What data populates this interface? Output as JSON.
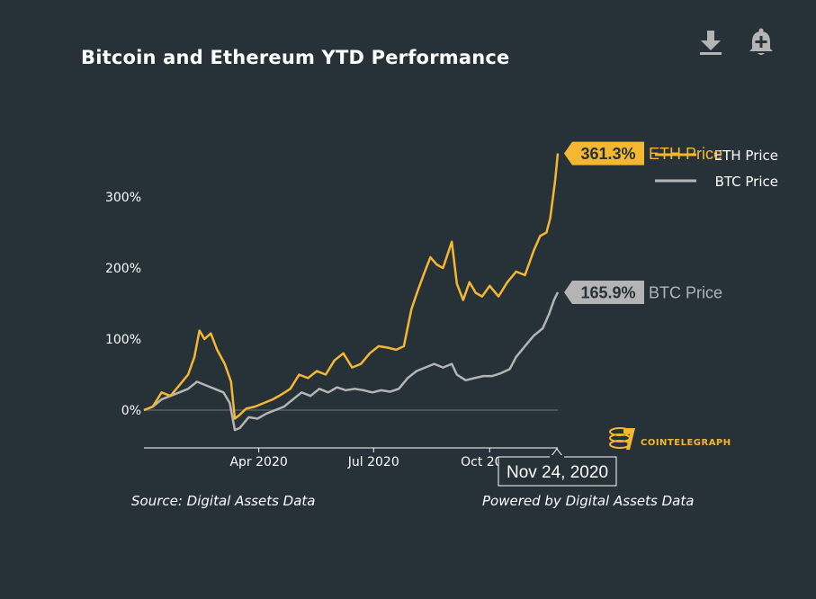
{
  "header": {
    "title": "Bitcoin and Ethereum YTD Performance",
    "download_icon": "download-icon",
    "alert_icon": "add-alert-bell-icon"
  },
  "footer": {
    "source": "Source: Digital Assets Data",
    "powered_by": "Powered by Digital Assets Data"
  },
  "logo": {
    "text": "COINTELEGRAPH",
    "icon": "cointelegraph-logo-icon"
  },
  "colors": {
    "background": "#263238",
    "eth": "#f5b731",
    "btc": "#b4b4b4",
    "axis": "#ffffff"
  },
  "tooltip": {
    "date": "Nov 24, 2020"
  },
  "chart_data": {
    "type": "line",
    "title": "Bitcoin and Ethereum YTD Performance",
    "xlabel": "",
    "ylabel": "",
    "y_unit": "%",
    "ylim": [
      -50,
      370
    ],
    "y_ticks": [
      {
        "value": 0,
        "label": "0%"
      },
      {
        "value": 100,
        "label": "100%"
      },
      {
        "value": 200,
        "label": "200%"
      },
      {
        "value": 300,
        "label": "300%"
      }
    ],
    "xlim": [
      "2020-01-01",
      "2020-11-24"
    ],
    "x_ticks": [
      {
        "value": "2020-04-01",
        "label": "Apr 2020"
      },
      {
        "value": "2020-07-01",
        "label": "Jul 2020"
      },
      {
        "value": "2020-10-01",
        "label": "Oct 2020"
      }
    ],
    "grid": false,
    "legend_position": "top-right",
    "series": [
      {
        "name": "ETH Price",
        "color": "#f5b731",
        "end_label": "361.3%",
        "points": [
          [
            "2020-01-01",
            0
          ],
          [
            "2020-01-08",
            5
          ],
          [
            "2020-01-15",
            25
          ],
          [
            "2020-01-22",
            20
          ],
          [
            "2020-01-29",
            35
          ],
          [
            "2020-02-05",
            50
          ],
          [
            "2020-02-10",
            75
          ],
          [
            "2020-02-14",
            112
          ],
          [
            "2020-02-18",
            100
          ],
          [
            "2020-02-23",
            108
          ],
          [
            "2020-02-28",
            85
          ],
          [
            "2020-03-05",
            65
          ],
          [
            "2020-03-10",
            40
          ],
          [
            "2020-03-13",
            -12
          ],
          [
            "2020-03-16",
            -8
          ],
          [
            "2020-03-22",
            2
          ],
          [
            "2020-03-29",
            5
          ],
          [
            "2020-04-05",
            10
          ],
          [
            "2020-04-12",
            15
          ],
          [
            "2020-04-19",
            22
          ],
          [
            "2020-04-26",
            30
          ],
          [
            "2020-05-03",
            50
          ],
          [
            "2020-05-10",
            45
          ],
          [
            "2020-05-17",
            55
          ],
          [
            "2020-05-24",
            50
          ],
          [
            "2020-05-31",
            70
          ],
          [
            "2020-06-07",
            80
          ],
          [
            "2020-06-14",
            60
          ],
          [
            "2020-06-21",
            65
          ],
          [
            "2020-06-28",
            80
          ],
          [
            "2020-07-05",
            90
          ],
          [
            "2020-07-12",
            88
          ],
          [
            "2020-07-19",
            85
          ],
          [
            "2020-07-25",
            90
          ],
          [
            "2020-07-31",
            142
          ],
          [
            "2020-08-05",
            168
          ],
          [
            "2020-08-10",
            192
          ],
          [
            "2020-08-15",
            215
          ],
          [
            "2020-08-20",
            205
          ],
          [
            "2020-08-25",
            200
          ],
          [
            "2020-09-01",
            237
          ],
          [
            "2020-09-05",
            178
          ],
          [
            "2020-09-10",
            155
          ],
          [
            "2020-09-15",
            180
          ],
          [
            "2020-09-20",
            165
          ],
          [
            "2020-09-25",
            160
          ],
          [
            "2020-10-01",
            175
          ],
          [
            "2020-10-08",
            160
          ],
          [
            "2020-10-15",
            180
          ],
          [
            "2020-10-22",
            195
          ],
          [
            "2020-10-29",
            190
          ],
          [
            "2020-11-05",
            225
          ],
          [
            "2020-11-10",
            245
          ],
          [
            "2020-11-15",
            250
          ],
          [
            "2020-11-18",
            270
          ],
          [
            "2020-11-22",
            325
          ],
          [
            "2020-11-24",
            361.3
          ]
        ]
      },
      {
        "name": "BTC Price",
        "color": "#b4b4b4",
        "end_label": "165.9%",
        "points": [
          [
            "2020-01-01",
            0
          ],
          [
            "2020-01-08",
            5
          ],
          [
            "2020-01-15",
            15
          ],
          [
            "2020-01-22",
            20
          ],
          [
            "2020-01-29",
            25
          ],
          [
            "2020-02-05",
            30
          ],
          [
            "2020-02-12",
            40
          ],
          [
            "2020-02-19",
            35
          ],
          [
            "2020-02-26",
            30
          ],
          [
            "2020-03-04",
            25
          ],
          [
            "2020-03-09",
            10
          ],
          [
            "2020-03-13",
            -28
          ],
          [
            "2020-03-17",
            -25
          ],
          [
            "2020-03-24",
            -10
          ],
          [
            "2020-03-31",
            -12
          ],
          [
            "2020-04-07",
            -5
          ],
          [
            "2020-04-14",
            0
          ],
          [
            "2020-04-21",
            5
          ],
          [
            "2020-04-28",
            15
          ],
          [
            "2020-05-05",
            25
          ],
          [
            "2020-05-12",
            20
          ],
          [
            "2020-05-19",
            30
          ],
          [
            "2020-05-26",
            25
          ],
          [
            "2020-06-02",
            32
          ],
          [
            "2020-06-09",
            28
          ],
          [
            "2020-06-16",
            30
          ],
          [
            "2020-06-23",
            28
          ],
          [
            "2020-06-30",
            25
          ],
          [
            "2020-07-07",
            28
          ],
          [
            "2020-07-14",
            26
          ],
          [
            "2020-07-21",
            30
          ],
          [
            "2020-07-28",
            45
          ],
          [
            "2020-08-04",
            55
          ],
          [
            "2020-08-11",
            60
          ],
          [
            "2020-08-18",
            65
          ],
          [
            "2020-08-25",
            60
          ],
          [
            "2020-09-01",
            65
          ],
          [
            "2020-09-05",
            50
          ],
          [
            "2020-09-12",
            42
          ],
          [
            "2020-09-19",
            45
          ],
          [
            "2020-09-26",
            48
          ],
          [
            "2020-10-03",
            48
          ],
          [
            "2020-10-10",
            52
          ],
          [
            "2020-10-17",
            58
          ],
          [
            "2020-10-22",
            75
          ],
          [
            "2020-10-29",
            90
          ],
          [
            "2020-11-05",
            105
          ],
          [
            "2020-11-12",
            115
          ],
          [
            "2020-11-17",
            135
          ],
          [
            "2020-11-21",
            155
          ],
          [
            "2020-11-24",
            165.9
          ]
        ]
      }
    ]
  }
}
